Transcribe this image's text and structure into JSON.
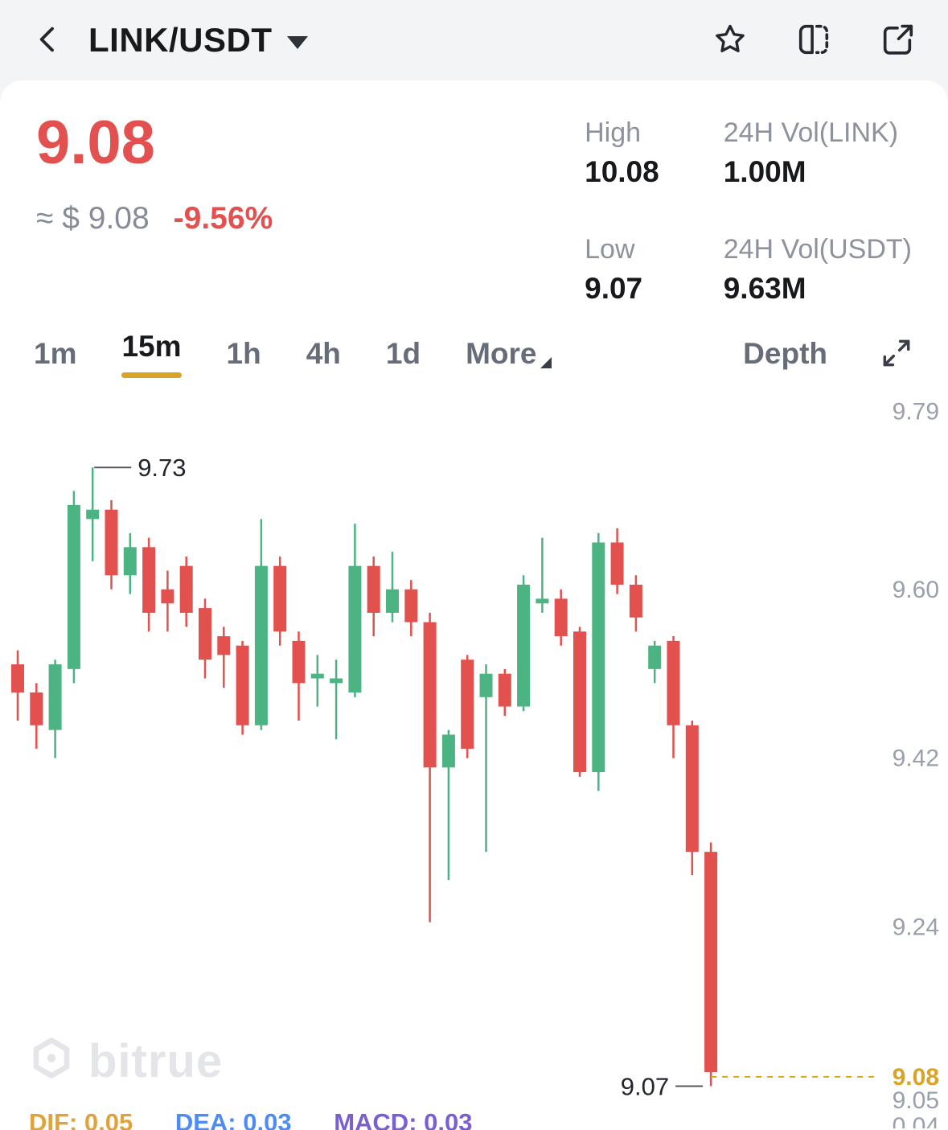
{
  "header": {
    "title": "LINK/USDT"
  },
  "ticker": {
    "price": "9.08",
    "approx": "≈ $ 9.08",
    "change": "-9.56%",
    "stats": [
      {
        "label": "High",
        "value": "10.08"
      },
      {
        "label": "24H Vol(LINK)",
        "value": "1.00M"
      },
      {
        "label": "Low",
        "value": "9.07"
      },
      {
        "label": "24H Vol(USDT)",
        "value": "9.63M"
      }
    ]
  },
  "tabs": {
    "items": [
      "1m",
      "15m",
      "1h",
      "4h",
      "1d"
    ],
    "active": "15m",
    "more": "More",
    "depth": "Depth"
  },
  "chart_data": {
    "type": "candlestick",
    "pair": "LINK/USDT",
    "interval": "15m",
    "ylim": [
      9.025,
      9.81
    ],
    "y_ticks": [
      "9.79",
      "9.60",
      "9.42",
      "9.24"
    ],
    "extra_labels": [
      {
        "text": "9.08",
        "price": 9.08,
        "color": "#d9a426",
        "bold": true
      },
      {
        "text": "9.05",
        "y": 890,
        "color": "#9aa0ab"
      },
      {
        "text": "0.04",
        "y": 922,
        "color": "#9aa0ab"
      }
    ],
    "current_price": 9.08,
    "up_color": "#4cb382",
    "down_color": "#e2514d",
    "line_color": "#55595f",
    "annotations": [
      {
        "text": "9.73",
        "candle": 4,
        "side": "high"
      },
      {
        "text": "9.07",
        "candle": 37,
        "side": "low"
      }
    ],
    "candles": [
      [
        9.52,
        9.535,
        9.46,
        9.49
      ],
      [
        9.49,
        9.5,
        9.43,
        9.455
      ],
      [
        9.45,
        9.525,
        9.42,
        9.52
      ],
      [
        9.515,
        9.705,
        9.5,
        9.69
      ],
      [
        9.675,
        9.73,
        9.63,
        9.685
      ],
      [
        9.685,
        9.695,
        9.6,
        9.615
      ],
      [
        9.615,
        9.66,
        9.595,
        9.645
      ],
      [
        9.645,
        9.655,
        9.555,
        9.575
      ],
      [
        9.6,
        9.62,
        9.555,
        9.585
      ],
      [
        9.625,
        9.635,
        9.56,
        9.575
      ],
      [
        9.58,
        9.59,
        9.505,
        9.525
      ],
      [
        9.55,
        9.56,
        9.495,
        9.53
      ],
      [
        9.54,
        9.545,
        9.445,
        9.455
      ],
      [
        9.455,
        9.675,
        9.45,
        9.625
      ],
      [
        9.625,
        9.635,
        9.54,
        9.555
      ],
      [
        9.545,
        9.555,
        9.46,
        9.5
      ],
      [
        9.505,
        9.53,
        9.475,
        9.51
      ],
      [
        9.5,
        9.525,
        9.44,
        9.505
      ],
      [
        9.49,
        9.67,
        9.485,
        9.625
      ],
      [
        9.625,
        9.635,
        9.55,
        9.575
      ],
      [
        9.575,
        9.64,
        9.565,
        9.6
      ],
      [
        9.6,
        9.61,
        9.55,
        9.565
      ],
      [
        9.565,
        9.575,
        9.245,
        9.41
      ],
      [
        9.41,
        9.45,
        9.29,
        9.445
      ],
      [
        9.525,
        9.53,
        9.42,
        9.43
      ],
      [
        9.485,
        9.52,
        9.32,
        9.51
      ],
      [
        9.51,
        9.515,
        9.465,
        9.475
      ],
      [
        9.475,
        9.615,
        9.47,
        9.605
      ],
      [
        9.585,
        9.655,
        9.575,
        9.59
      ],
      [
        9.59,
        9.6,
        9.54,
        9.55
      ],
      [
        9.555,
        9.56,
        9.4,
        9.405
      ],
      [
        9.405,
        9.66,
        9.385,
        9.65
      ],
      [
        9.65,
        9.665,
        9.595,
        9.605
      ],
      [
        9.605,
        9.615,
        9.555,
        9.57
      ],
      [
        9.515,
        9.545,
        9.5,
        9.54
      ],
      [
        9.545,
        9.55,
        9.42,
        9.455
      ],
      [
        9.455,
        9.46,
        9.295,
        9.32
      ],
      [
        9.32,
        9.33,
        9.07,
        9.085
      ]
    ]
  },
  "watermark": {
    "text": "bitrue"
  },
  "footer": {
    "dif": "DIF: 0.05",
    "dea": "DEA: 0.03",
    "macd": "MACD: 0.03"
  },
  "colors": {
    "accent_gold": "#d9a426",
    "up": "#4cb382",
    "down": "#e2514d",
    "price_red": "#e2504f"
  }
}
